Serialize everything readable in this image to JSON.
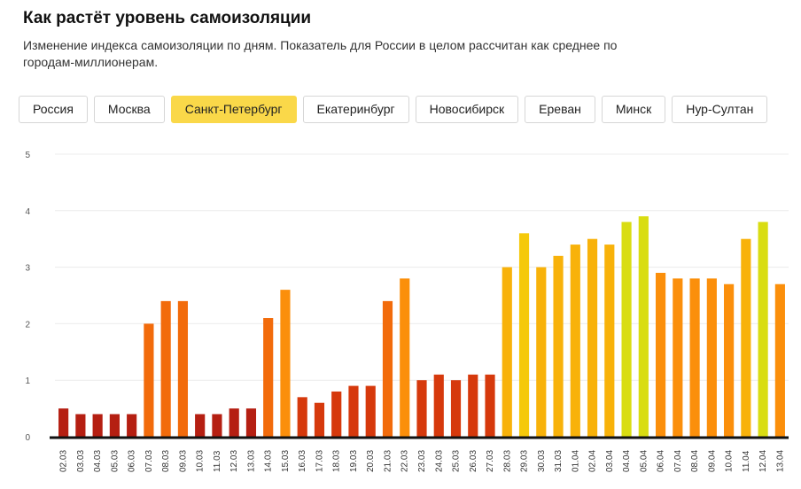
{
  "header": {
    "title": "Как растёт уровень самоизоляции",
    "subtitle": "Изменение индекса самоизоляции по дням. Показатель для России в целом рассчитан как среднее по городам-миллионерам."
  },
  "tabs": [
    {
      "label": "Россия",
      "active": false
    },
    {
      "label": "Москва",
      "active": false
    },
    {
      "label": "Санкт-Петербург",
      "active": true
    },
    {
      "label": "Екатеринбург",
      "active": false
    },
    {
      "label": "Новосибирск",
      "active": false
    },
    {
      "label": "Ереван",
      "active": false
    },
    {
      "label": "Минск",
      "active": false
    },
    {
      "label": "Нур-Султан",
      "active": false
    }
  ],
  "colors": {
    "active_tab": "#fad849",
    "scale": [
      "#b51f12",
      "#d6390c",
      "#f26b0b",
      "#fb8f0b",
      "#f8b20a",
      "#f5c90a",
      "#d9dd12"
    ]
  },
  "chart_data": {
    "type": "bar",
    "title": "",
    "xlabel": "",
    "ylabel": "",
    "ylim": [
      0,
      5
    ],
    "yticks": [
      0,
      1,
      2,
      3,
      4,
      5
    ],
    "grid": true,
    "categories": [
      "02.03",
      "03.03",
      "04.03",
      "05.03",
      "06.03",
      "07.03",
      "08.03",
      "09.03",
      "10.03",
      "11.03",
      "12.03",
      "13.03",
      "14.03",
      "15.03",
      "16.03",
      "17.03",
      "18.03",
      "19.03",
      "20.03",
      "21.03",
      "22.03",
      "23.03",
      "24.03",
      "25.03",
      "26.03",
      "27.03",
      "28.03",
      "29.03",
      "30.03",
      "31.03",
      "01.04",
      "02.04",
      "03.04",
      "04.04",
      "05.04",
      "06.04",
      "07.04",
      "08.04",
      "09.04",
      "10.04",
      "11.04",
      "12.04",
      "13.04"
    ],
    "values": [
      0.5,
      0.4,
      0.4,
      0.4,
      0.4,
      2.0,
      2.4,
      2.4,
      0.4,
      0.4,
      0.5,
      0.5,
      2.1,
      2.6,
      0.7,
      0.6,
      0.8,
      0.9,
      0.9,
      2.4,
      2.8,
      1.0,
      1.1,
      1.0,
      1.1,
      1.1,
      3.0,
      3.6,
      3.0,
      3.2,
      3.4,
      3.5,
      3.4,
      3.8,
      3.9,
      2.9,
      2.8,
      2.8,
      2.8,
      2.7,
      3.5,
      3.8,
      2.7
    ]
  }
}
